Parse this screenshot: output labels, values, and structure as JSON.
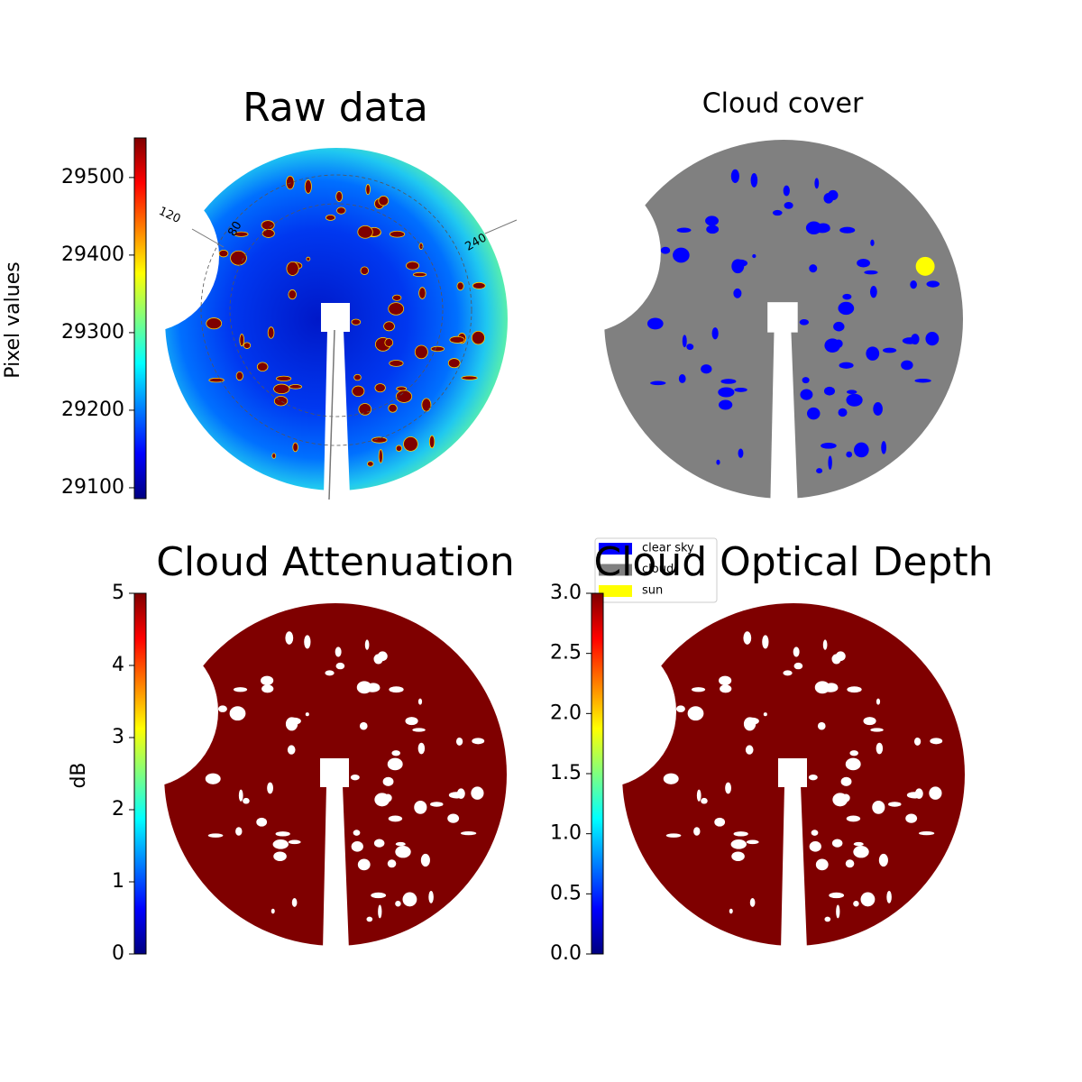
{
  "chart_data": [
    {
      "type": "image",
      "title": "Raw data",
      "colormap": "jet",
      "colorbar": {
        "label": "Pixel values",
        "lim": [
          29086,
          29551
        ],
        "ticks": [
          29100,
          29200,
          29300,
          29400,
          29500
        ]
      },
      "polar_labels": [
        "120",
        "80",
        "240"
      ]
    },
    {
      "type": "image",
      "title": "Cloud cover",
      "legend": [
        {
          "name": "clear sky",
          "color": "#0000ff"
        },
        {
          "name": "cloud",
          "color": "#808080"
        },
        {
          "name": "sun",
          "color": "#ffff00"
        }
      ]
    },
    {
      "type": "image",
      "title": "Cloud Attenuation",
      "colormap": "jet",
      "colorbar": {
        "label": "dB",
        "lim": [
          0,
          5
        ],
        "ticks": [
          0,
          1,
          2,
          3,
          4,
          5
        ]
      }
    },
    {
      "type": "image",
      "title": "Cloud Optical Depth",
      "colormap": "jet",
      "colorbar": {
        "lim": [
          0,
          3
        ],
        "ticks": [
          {
            "value": 0,
            "label": "0.0"
          },
          0.5,
          {
            "value": 1,
            "label": "1.0"
          },
          1.5,
          {
            "value": 2,
            "label": "2.0"
          },
          2.5,
          {
            "value": 3,
            "label": "3.0"
          }
        ]
      }
    }
  ]
}
